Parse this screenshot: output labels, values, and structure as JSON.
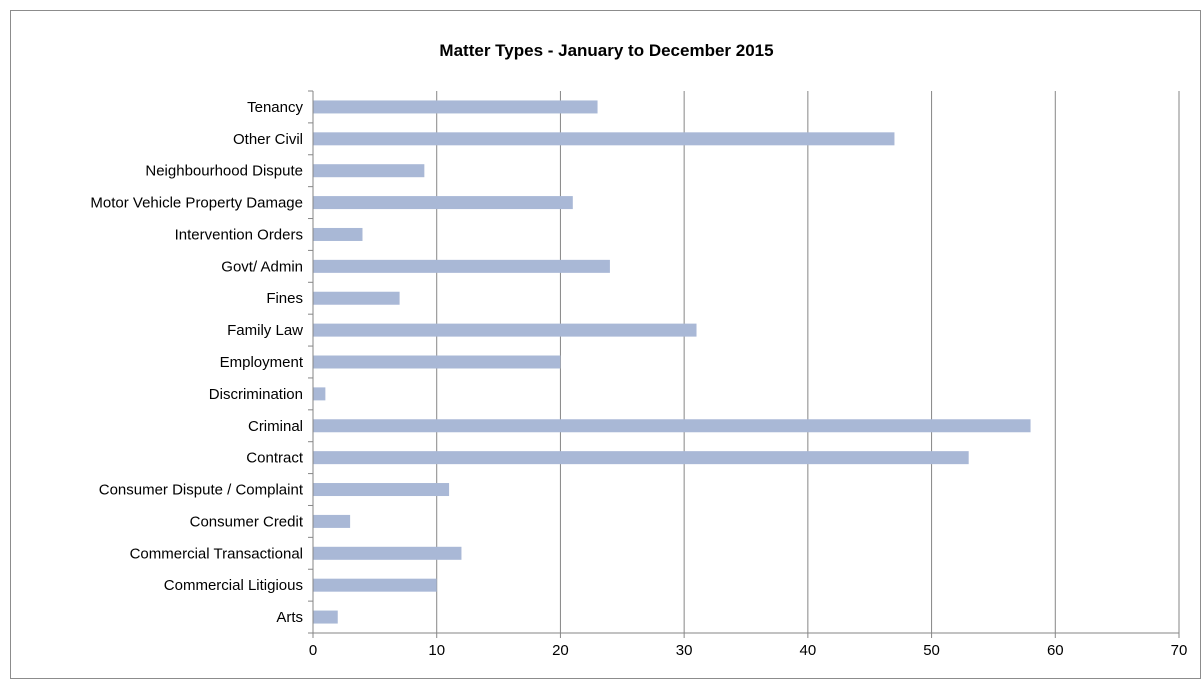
{
  "chart_data": {
    "type": "bar",
    "orientation": "horizontal",
    "title": "Matter Types - January to December 2015",
    "xlabel": "",
    "ylabel": "",
    "categories": [
      "Tenancy",
      "Other Civil",
      "Neighbourhood Dispute",
      "Motor Vehicle Property Damage",
      "Intervention Orders",
      "Govt/ Admin",
      "Fines",
      "Family Law",
      "Employment",
      "Discrimination",
      "Criminal",
      "Contract",
      "Consumer Dispute / Complaint",
      "Consumer Credit",
      "Commercial Transactional",
      "Commercial Litigious",
      "Arts"
    ],
    "values": [
      23,
      47,
      9,
      21,
      4,
      24,
      7,
      31,
      20,
      1,
      58,
      53,
      11,
      3,
      12,
      10,
      2
    ],
    "xlim": [
      0,
      70
    ],
    "xticks": [
      "0",
      "10",
      "20",
      "30",
      "40",
      "50",
      "60",
      "70"
    ],
    "grid": "vertical",
    "legend": "none",
    "bar_color": "#a9b8d6",
    "grid_color": "#868686"
  }
}
